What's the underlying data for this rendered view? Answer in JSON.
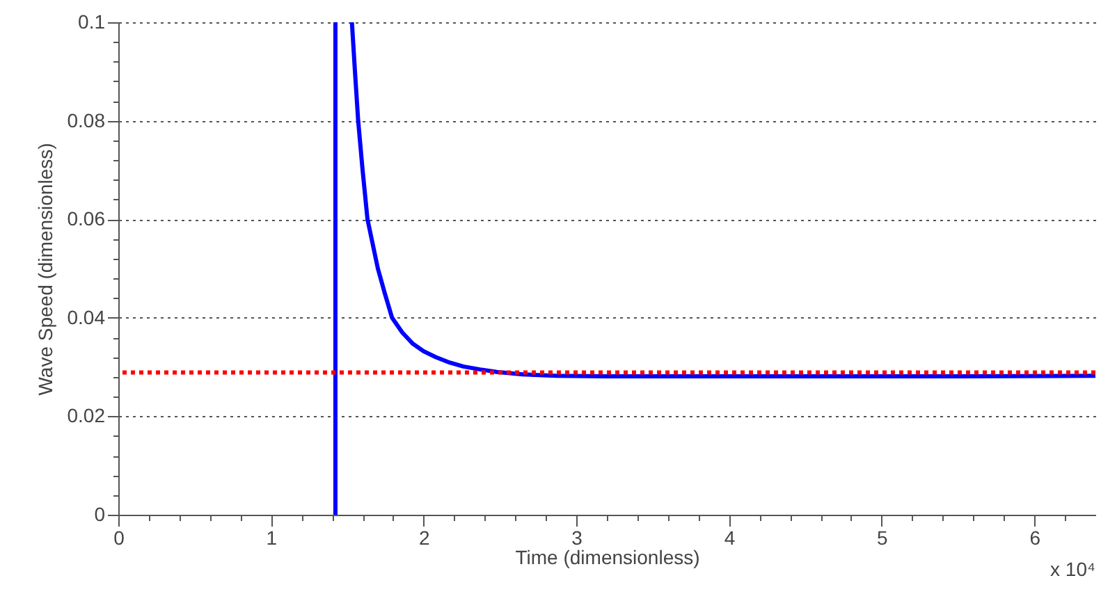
{
  "chart_data": {
    "type": "line",
    "xlabel": "Time (dimensionless)",
    "ylabel": "Wave Speed (dimensionless)",
    "annotations": [
      "x 10⁴"
    ],
    "series": [
      {
        "color": "#0000ff",
        "x": [
          1.422,
          1.422,
          null,
          1.53,
          1.55,
          1.571,
          1.6,
          1.632,
          1.7,
          1.745,
          1.793,
          1.86,
          1.93,
          2.0,
          2.08,
          2.17,
          2.26,
          2.37,
          2.48,
          2.65,
          2.87,
          3.2,
          3.5,
          4.5,
          5.5,
          6.4
        ],
        "values": [
          0,
          0.1,
          null,
          0.1,
          0.09,
          0.08,
          0.07,
          0.06,
          0.05,
          0.045,
          0.04,
          0.037,
          0.0347,
          0.0332,
          0.032,
          0.0309,
          0.0301,
          0.0295,
          0.029,
          0.0285,
          0.0282,
          0.0281,
          0.0281,
          0.0281,
          0.0281,
          0.0282
        ]
      }
    ],
    "ref_lines": [
      {
        "axis": "y",
        "value": 0.0289,
        "label": null,
        "color": "#ff0000",
        "line_style": "dotted"
      }
    ],
    "xlim": [
      0,
      6.4
    ],
    "ylim": [
      0,
      0.1
    ],
    "xticks": [
      0,
      {
        "value": 0.2,
        "label": null
      },
      {
        "value": 0.4,
        "label": null
      },
      {
        "value": 0.6,
        "label": null
      },
      {
        "value": 0.8,
        "label": null
      },
      1,
      {
        "value": 1.2,
        "label": null
      },
      {
        "value": 1.4,
        "label": null
      },
      {
        "value": 1.6,
        "label": null
      },
      {
        "value": 1.8,
        "label": null
      },
      2,
      {
        "value": 2.2,
        "label": null
      },
      {
        "value": 2.4,
        "label": null
      },
      {
        "value": 2.6,
        "label": null
      },
      {
        "value": 2.8,
        "label": null
      },
      3,
      {
        "value": 3.2,
        "label": null
      },
      {
        "value": 3.4,
        "label": null
      },
      {
        "value": 3.6,
        "label": null
      },
      {
        "value": 3.8,
        "label": null
      },
      4,
      {
        "value": 4.2,
        "label": null
      },
      {
        "value": 4.4,
        "label": null
      },
      {
        "value": 4.6,
        "label": null
      },
      {
        "value": 4.8,
        "label": null
      },
      5,
      {
        "value": 5.2,
        "label": null
      },
      {
        "value": 5.4,
        "label": null
      },
      {
        "value": 5.6,
        "label": null
      },
      {
        "value": 5.8,
        "label": null
      },
      6,
      {
        "value": 6.2,
        "label": null
      }
    ],
    "yticks": [
      0,
      {
        "value": 0.004,
        "label": null
      },
      {
        "value": 0.008,
        "label": null
      },
      {
        "value": 0.012,
        "label": null
      },
      {
        "value": 0.016,
        "label": null
      },
      0.02,
      {
        "value": 0.024,
        "label": null
      },
      {
        "value": 0.028,
        "label": null
      },
      {
        "value": 0.032,
        "label": null
      },
      {
        "value": 0.036,
        "label": null
      },
      0.04,
      {
        "value": 0.044,
        "label": null
      },
      {
        "value": 0.048,
        "label": null
      },
      {
        "value": 0.052,
        "label": null
      },
      {
        "value": 0.056,
        "label": null
      },
      0.06,
      {
        "value": 0.064,
        "label": null
      },
      {
        "value": 0.068,
        "label": null
      },
      {
        "value": 0.072,
        "label": null
      },
      {
        "value": 0.076,
        "label": null
      },
      0.08,
      {
        "value": 0.084,
        "label": null
      },
      {
        "value": 0.088,
        "label": null
      },
      {
        "value": 0.092,
        "label": null
      },
      {
        "value": 0.096,
        "label": null
      },
      0.1
    ],
    "grid": "y",
    "marker": "none",
    "line_style": "solid"
  }
}
